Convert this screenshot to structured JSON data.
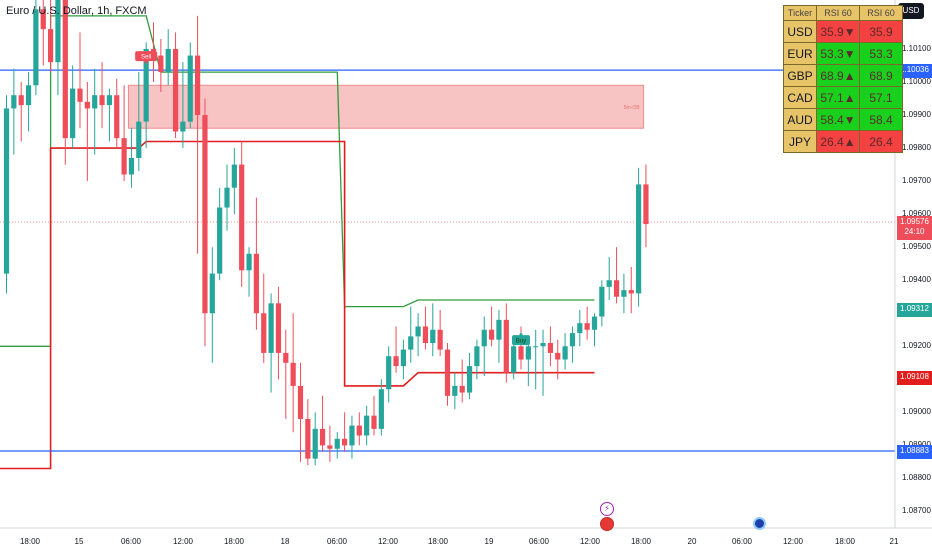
{
  "header": {
    "title": "Euro / U.S. Dollar, 1h, FXCM",
    "currency_button": "USD"
  },
  "colors": {
    "bull": "#26a69a",
    "bear": "#ef4d5a",
    "upper_band": "#2e9e3e",
    "lower_band": "#e11d1d",
    "hline": "#2962ff",
    "zone_fill": "#f7c3c3",
    "zone_border": "#f08c8c"
  },
  "chart_data": {
    "type": "candlestick",
    "ylim": [
      1.0865,
      1.1023
    ],
    "y_ticks": [
      "1.10100",
      "1.10000",
      "1.09900",
      "1.09800",
      "1.09700",
      "1.09600",
      "1.09500",
      "1.09400",
      "1.09300",
      "1.09200",
      "1.09100",
      "1.09000",
      "1.08900",
      "1.08800",
      "1.08700"
    ],
    "x_ticks": [
      "18:00",
      "15",
      "06:00",
      "12:00",
      "18:00",
      "18",
      "06:00",
      "12:00",
      "18:00",
      "19",
      "06:00",
      "12:00",
      "18:00",
      "20",
      "06:00",
      "12:00",
      "18:00",
      "21"
    ],
    "candles": [
      [
        1.0942,
        1.0996,
        1.0936,
        1.0992
      ],
      [
        1.0992,
        1.1004,
        1.0978,
        1.0996
      ],
      [
        1.0996,
        1.1,
        1.0982,
        1.0993
      ],
      [
        1.0993,
        1.1003,
        1.0985,
        1.0999
      ],
      [
        1.0999,
        1.1034,
        1.0996,
        1.1022
      ],
      [
        1.1022,
        1.1031,
        1.1005,
        1.1016
      ],
      [
        1.1016,
        1.1037,
        1.1003,
        1.1006
      ],
      [
        1.1006,
        1.1041,
        1.0996,
        1.1036
      ],
      [
        1.1036,
        1.104,
        1.0975,
        1.0983
      ],
      [
        1.0983,
        1.1005,
        1.098,
        1.0998
      ],
      [
        1.0998,
        1.1015,
        1.0986,
        1.0994
      ],
      [
        1.0994,
        1.1,
        1.097,
        1.0992
      ],
      [
        1.0992,
        1.1004,
        1.0978,
        1.0996
      ],
      [
        1.0996,
        1.1006,
        1.0986,
        1.0993
      ],
      [
        1.0993,
        1.0998,
        1.0982,
        1.0996
      ],
      [
        1.0996,
        1.1001,
        1.098,
        1.0983
      ],
      [
        1.0983,
        1.0999,
        1.097,
        1.0972
      ],
      [
        1.0972,
        1.0986,
        1.0968,
        1.0977
      ],
      [
        1.0977,
        1.1003,
        1.0973,
        1.0988
      ],
      [
        1.0988,
        1.1012,
        1.098,
        1.101
      ],
      [
        1.101,
        1.1018,
        1.1,
        1.1008
      ],
      [
        1.1008,
        1.1013,
        1.0997,
        1.1003
      ],
      [
        1.1003,
        1.1016,
        1.0999,
        1.101
      ],
      [
        1.101,
        1.1015,
        1.0983,
        1.0985
      ],
      [
        1.0985,
        1.1006,
        1.098,
        1.0988
      ],
      [
        1.0988,
        1.1012,
        1.0986,
        1.1008
      ],
      [
        1.1008,
        1.102,
        1.0948,
        1.099
      ],
      [
        1.099,
        1.0995,
        1.092,
        1.093
      ],
      [
        1.093,
        1.095,
        1.0915,
        1.0942
      ],
      [
        1.0942,
        1.0968,
        1.094,
        1.0962
      ],
      [
        1.0962,
        1.0975,
        1.0955,
        1.0968
      ],
      [
        1.0968,
        1.098,
        1.096,
        1.0975
      ],
      [
        1.0975,
        1.0982,
        1.0938,
        1.0943
      ],
      [
        1.0943,
        1.095,
        1.0935,
        1.0948
      ],
      [
        1.0948,
        1.0965,
        1.0925,
        1.093
      ],
      [
        1.093,
        1.0942,
        1.0915,
        1.0918
      ],
      [
        1.0918,
        1.0936,
        1.0906,
        1.0933
      ],
      [
        1.0933,
        1.0938,
        1.091,
        1.0918
      ],
      [
        1.0918,
        1.0925,
        1.0898,
        1.0915
      ],
      [
        1.0915,
        1.093,
        1.0894,
        1.0908
      ],
      [
        1.0908,
        1.0915,
        1.0885,
        1.0898
      ],
      [
        1.0898,
        1.0904,
        1.0884,
        1.0886
      ],
      [
        1.0886,
        1.09,
        1.0884,
        1.0895
      ],
      [
        1.0895,
        1.0905,
        1.0888,
        1.089
      ],
      [
        1.089,
        1.0896,
        1.0885,
        1.0889
      ],
      [
        1.0889,
        1.0894,
        1.0886,
        1.0892
      ],
      [
        1.0892,
        1.09,
        1.0888,
        1.089
      ],
      [
        1.089,
        1.0899,
        1.0886,
        1.0896
      ],
      [
        1.0896,
        1.09,
        1.089,
        1.0893
      ],
      [
        1.0893,
        1.0902,
        1.089,
        1.0899
      ],
      [
        1.0899,
        1.0905,
        1.0893,
        1.0895
      ],
      [
        1.0895,
        1.091,
        1.0893,
        1.0907
      ],
      [
        1.0907,
        1.092,
        1.0903,
        1.0917
      ],
      [
        1.0917,
        1.0926,
        1.0912,
        1.0914
      ],
      [
        1.0914,
        1.0922,
        1.091,
        1.0919
      ],
      [
        1.0919,
        1.0932,
        1.0915,
        1.0923
      ],
      [
        1.0923,
        1.093,
        1.0917,
        1.0926
      ],
      [
        1.0926,
        1.0932,
        1.0919,
        1.0921
      ],
      [
        1.0921,
        1.0933,
        1.0917,
        1.0925
      ],
      [
        1.0925,
        1.0931,
        1.0917,
        1.0919
      ],
      [
        1.0919,
        1.0921,
        1.0902,
        1.0905
      ],
      [
        1.0905,
        1.0912,
        1.0901,
        1.0908
      ],
      [
        1.0908,
        1.0916,
        1.0903,
        1.0906
      ],
      [
        1.0906,
        1.0918,
        1.0904,
        1.0914
      ],
      [
        1.0914,
        1.0922,
        1.091,
        1.092
      ],
      [
        1.092,
        1.0929,
        1.0911,
        1.0925
      ],
      [
        1.0925,
        1.0932,
        1.092,
        1.0922
      ],
      [
        1.0922,
        1.0931,
        1.0915,
        1.0928
      ],
      [
        1.0928,
        1.0933,
        1.0909,
        1.0912
      ],
      [
        1.0912,
        1.0923,
        1.091,
        1.092
      ],
      [
        1.092,
        1.0926,
        1.0913,
        1.0916
      ],
      [
        1.0916,
        1.0923,
        1.0908,
        1.092
      ],
      [
        1.092,
        1.0925,
        1.0907,
        1.092
      ],
      [
        1.092,
        1.0925,
        1.0905,
        1.0921
      ],
      [
        1.0921,
        1.0926,
        1.0914,
        1.0918
      ],
      [
        1.0918,
        1.0922,
        1.091,
        1.0916
      ],
      [
        1.0916,
        1.0924,
        1.0913,
        1.092
      ],
      [
        1.092,
        1.0926,
        1.0915,
        1.0924
      ],
      [
        1.0924,
        1.0931,
        1.092,
        1.0927
      ],
      [
        1.0927,
        1.0932,
        1.0922,
        1.0925
      ],
      [
        1.0925,
        1.093,
        1.092,
        1.0929
      ],
      [
        1.0929,
        1.094,
        1.0926,
        1.0938
      ],
      [
        1.0938,
        1.0947,
        1.0934,
        1.094
      ],
      [
        1.094,
        1.095,
        1.0933,
        1.0935
      ],
      [
        1.0935,
        1.0942,
        1.093,
        1.0937
      ],
      [
        1.0937,
        1.0944,
        1.093,
        1.0936
      ],
      [
        1.0936,
        1.0974,
        1.0932,
        1.0969
      ],
      [
        1.0969,
        1.0975,
        1.095,
        1.0957
      ]
    ],
    "upper_band": [
      [
        -1,
        1.092
      ],
      [
        6,
        1.092
      ],
      [
        6,
        1.102
      ],
      [
        19,
        1.102
      ],
      [
        21,
        1.1003
      ],
      [
        45,
        1.1003
      ],
      [
        46,
        1.0932
      ],
      [
        54,
        1.0932
      ],
      [
        56,
        1.0934
      ],
      [
        80,
        1.0934
      ]
    ],
    "lower_band": [
      [
        -1,
        1.0883
      ],
      [
        6,
        1.0883
      ],
      [
        6,
        1.098
      ],
      [
        18,
        1.098
      ],
      [
        19,
        1.0982
      ],
      [
        46,
        1.0982
      ],
      [
        46,
        1.0908
      ],
      [
        54,
        1.0908
      ],
      [
        56,
        1.0912
      ],
      [
        80,
        1.0912
      ]
    ],
    "hlines": [
      1.10036,
      1.08883
    ],
    "current_price": 1.09576,
    "zone": {
      "from_index": 17,
      "to_index": 86,
      "top": 1.0999,
      "bottom": 1.0986,
      "label": "5m-OB"
    },
    "signals": [
      {
        "label": "Sell",
        "index": 19,
        "price": 1.1006,
        "color": "#ef4d5a"
      },
      {
        "label": "Buy",
        "index": 70,
        "price": 1.0924,
        "color": "#26a69a"
      }
    ],
    "axis_labels": [
      {
        "text": "1.10036",
        "bg": "#2962ff",
        "value": 1.10036
      },
      {
        "text": "1.09576",
        "sub": "24:10",
        "bg": "#ef4d5a",
        "value": 1.09576
      },
      {
        "text": "1.09312",
        "bg": "#26a69a",
        "value": 1.09312
      },
      {
        "text": "1.09108",
        "bg": "#e11d1d",
        "value": 1.09108
      },
      {
        "text": "1.08883",
        "bg": "#2962ff",
        "value": 1.08883
      }
    ]
  },
  "rsi_table": {
    "headers": [
      "Ticker",
      "RSI 60",
      "RSI 60"
    ],
    "rows": [
      {
        "ticker": "USD",
        "a": "35.9▼",
        "b": "35.9",
        "color": "#f44141"
      },
      {
        "ticker": "EUR",
        "a": "53.3▼",
        "b": "53.3",
        "color": "#19d11d"
      },
      {
        "ticker": "GBP",
        "a": "68.9▲",
        "b": "68.9",
        "color": "#19d11d"
      },
      {
        "ticker": "CAD",
        "a": "57.1▲",
        "b": "57.1",
        "color": "#19d11d"
      },
      {
        "ticker": "AUD",
        "a": "58.4▼",
        "b": "58.4",
        "color": "#19d11d"
      },
      {
        "ticker": "JPY",
        "a": "26.4▲",
        "b": "26.4",
        "color": "#f44141"
      }
    ]
  }
}
